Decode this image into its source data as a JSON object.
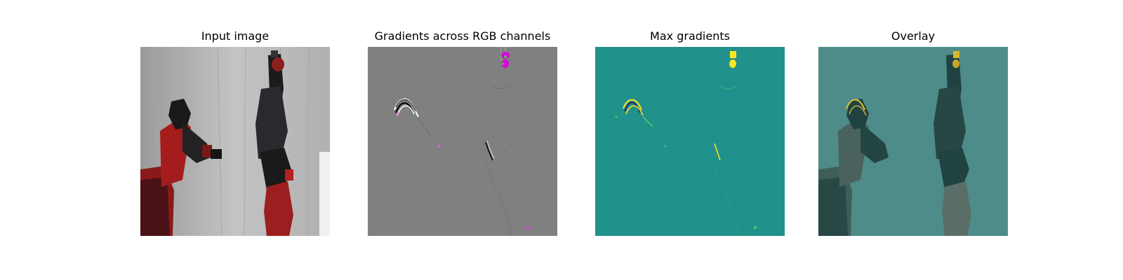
{
  "figure": {
    "panels": [
      {
        "title": "Input image",
        "content": "photo of two robot arms (red and black) against a white curtain"
      },
      {
        "title": "Gradients across RGB channels",
        "content": "gradient map on gray background"
      },
      {
        "title": "Max gradients",
        "content": "gradient magnitude map on teal background"
      },
      {
        "title": "Overlay",
        "content": "gradient map overlaid on input photo"
      }
    ],
    "colors": {
      "gray_background": "#808080",
      "teal_background": "#21918c",
      "gradient_magenta": "#e000e0",
      "gradient_yellow": "#fde725"
    }
  }
}
